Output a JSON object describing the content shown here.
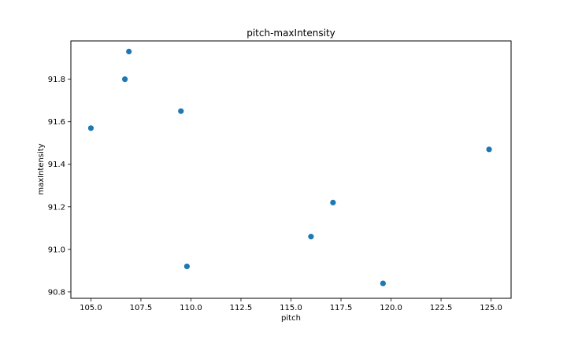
{
  "chart_data": {
    "type": "scatter",
    "title": "pitch-maxIntensity",
    "xlabel": "pitch",
    "ylabel": "maxIntensity",
    "xlim": [
      104.0,
      126.0
    ],
    "ylim": [
      90.77,
      91.98
    ],
    "xticks": [
      "105.0",
      "107.5",
      "110.0",
      "112.5",
      "115.0",
      "117.5",
      "120.0",
      "122.5",
      "125.0"
    ],
    "yticks": [
      "90.8",
      "91.0",
      "91.2",
      "91.4",
      "91.6",
      "91.8"
    ],
    "grid": false,
    "marker_color": "#1f77b4",
    "points": [
      {
        "x": 105.0,
        "y": 91.57
      },
      {
        "x": 106.7,
        "y": 91.8
      },
      {
        "x": 106.9,
        "y": 91.93
      },
      {
        "x": 109.5,
        "y": 91.65
      },
      {
        "x": 109.8,
        "y": 90.92
      },
      {
        "x": 116.0,
        "y": 91.06
      },
      {
        "x": 117.1,
        "y": 91.22
      },
      {
        "x": 119.6,
        "y": 90.84
      },
      {
        "x": 124.9,
        "y": 91.47
      }
    ]
  }
}
